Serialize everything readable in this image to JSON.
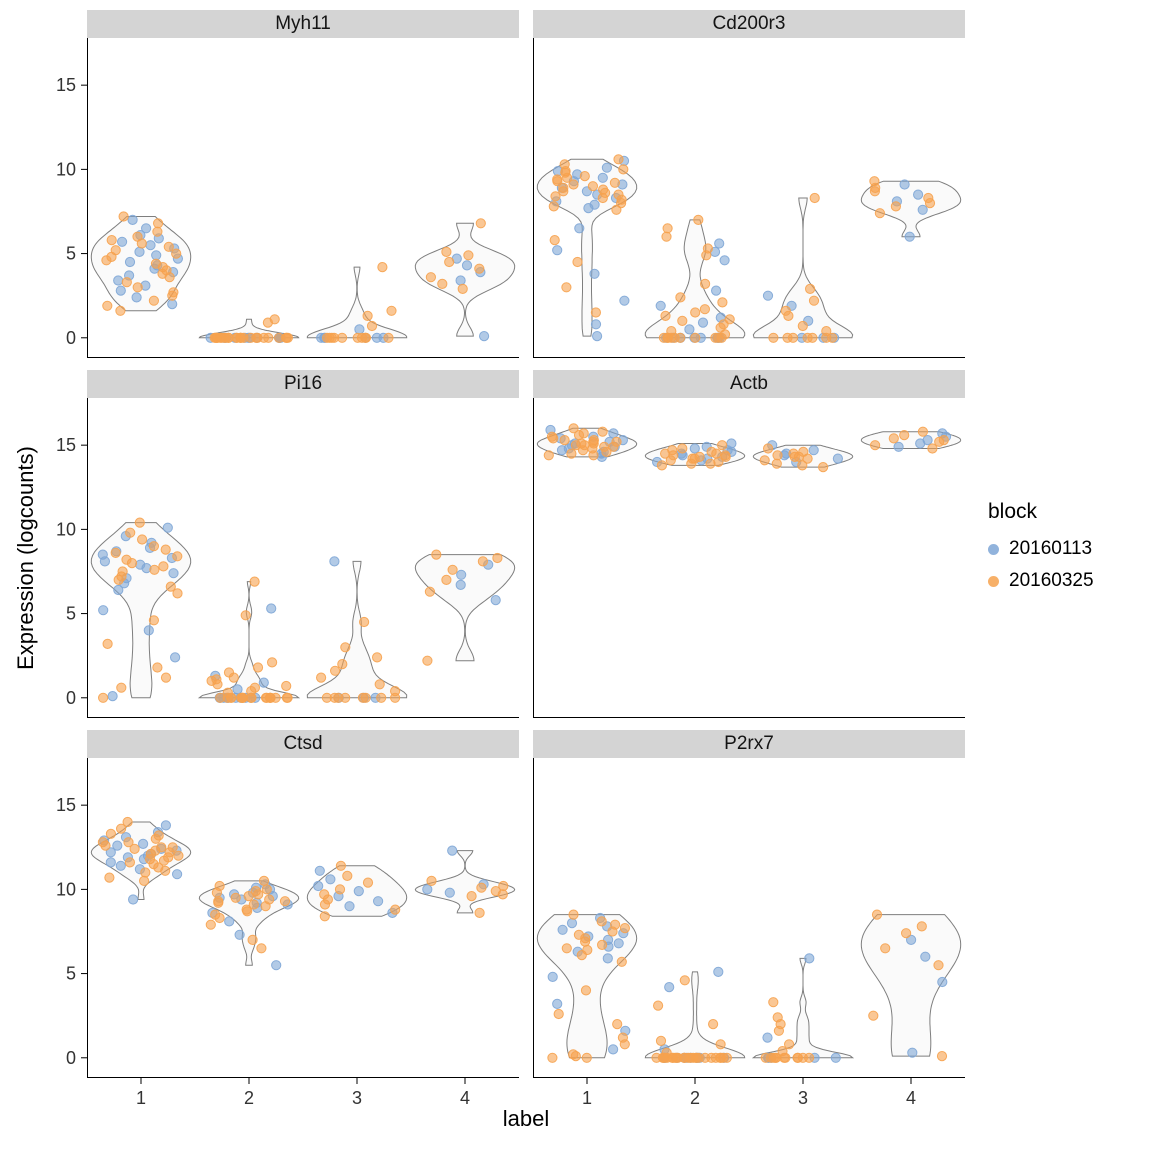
{
  "figure": {
    "y_axis_title": "Expression (logcounts)",
    "x_axis_title": "label",
    "x_ticks": [
      "1",
      "2",
      "3",
      "4"
    ],
    "y_ticks": [
      0,
      5,
      10,
      15
    ],
    "background": "#ffffff",
    "strip_color": "#d4d4d4",
    "axis_color": "#000000",
    "tick_text_color": "#333333"
  },
  "legend": {
    "title": "block",
    "items": [
      {
        "label": "20160113",
        "color": "#7EA6D6"
      },
      {
        "label": "20160325",
        "color": "#F6A24E"
      }
    ]
  },
  "chart_data": {
    "type": "violin",
    "facet_by": "gene",
    "x": "label",
    "y": "Expression (logcounts)",
    "ylim": [
      -1.2,
      17.8
    ],
    "violin_fill": "#FAFAFA",
    "violin_stroke": "#7E7E7E",
    "blocks": [
      "20160113",
      "20160325"
    ],
    "block_colors": {
      "20160113": "#7EA6D6",
      "20160325": "#F6A24E"
    },
    "facets": [
      {
        "gene": "Myh11",
        "groups": [
          {
            "label": "1",
            "values": {
              "20160113": [
                7.0,
                6.5,
                6.1,
                5.9,
                5.7,
                5.5,
                5.3,
                5.1,
                4.9,
                4.7,
                4.5,
                4.3,
                4.1,
                3.9,
                3.7,
                3.4,
                3.1,
                2.8,
                2.4,
                2.0
              ],
              "20160325": [
                7.2,
                6.8,
                6.3,
                6.0,
                5.8,
                5.6,
                5.4,
                5.2,
                5.0,
                4.8,
                4.6,
                4.4,
                4.2,
                4.0,
                3.8,
                3.6,
                3.3,
                3.0,
                2.7,
                2.5,
                2.2,
                1.9,
                1.6
              ]
            }
          },
          {
            "label": "2",
            "values": {
              "20160113": [
                0,
                0,
                0,
                0,
                0,
                0,
                0,
                0,
                0,
                0,
                0,
                0
              ],
              "20160325": [
                0,
                0,
                0,
                0,
                0,
                0,
                0,
                0,
                0,
                0,
                0,
                0,
                0,
                0,
                0,
                0,
                0,
                0,
                0,
                0,
                0,
                0,
                0,
                0,
                0,
                0,
                0.9,
                1.1
              ]
            }
          },
          {
            "label": "3",
            "values": {
              "20160113": [
                0,
                0,
                0,
                0,
                0,
                0,
                0.5
              ],
              "20160325": [
                0,
                0,
                0,
                0,
                0,
                0,
                0,
                0,
                0,
                0,
                0.7,
                1.3,
                1.6,
                4.2
              ]
            }
          },
          {
            "label": "4",
            "values": {
              "20160113": [
                0.1,
                3.4,
                3.9,
                4.3,
                4.7
              ],
              "20160325": [
                2.9,
                3.2,
                3.6,
                4.1,
                4.5,
                4.9,
                5.1,
                6.8
              ]
            }
          }
        ]
      },
      {
        "gene": "Cd200r3",
        "groups": [
          {
            "label": "1",
            "values": {
              "20160113": [
                10.5,
                10.1,
                9.9,
                9.7,
                9.5,
                9.3,
                9.1,
                8.9,
                8.7,
                8.5,
                8.3,
                8.1,
                7.9,
                7.7,
                6.5,
                5.2,
                3.8,
                2.2,
                0.8,
                0.1
              ],
              "20160325": [
                10.6,
                10.3,
                10.0,
                9.9,
                9.8,
                9.6,
                9.5,
                9.4,
                9.3,
                9.2,
                9.1,
                9.0,
                8.9,
                8.8,
                8.7,
                8.6,
                8.5,
                8.4,
                8.3,
                8.2,
                8.0,
                7.8,
                7.6,
                5.8,
                4.5,
                3.0,
                1.5
              ]
            }
          },
          {
            "label": "2",
            "values": {
              "20160113": [
                0,
                0,
                0,
                0,
                0,
                0,
                0,
                0,
                0.5,
                0.9,
                1.2,
                1.9,
                2.8,
                4.6,
                5.1,
                5.6
              ],
              "20160325": [
                0,
                0,
                0,
                0,
                0,
                0,
                0,
                0,
                0,
                0,
                0.2,
                0.4,
                0.6,
                0.8,
                1.0,
                1.1,
                1.3,
                1.5,
                1.7,
                2.1,
                2.4,
                3.2,
                4.9,
                5.3,
                6.0,
                6.5,
                7.0
              ]
            }
          },
          {
            "label": "3",
            "values": {
              "20160113": [
                0,
                0,
                0,
                1.0,
                1.9,
                2.5
              ],
              "20160325": [
                0,
                0,
                0,
                0,
                0,
                0,
                0,
                0.4,
                0.7,
                1.3,
                1.6,
                2.2,
                2.9,
                8.3
              ]
            }
          },
          {
            "label": "4",
            "values": {
              "20160113": [
                6.0,
                7.6,
                8.1,
                8.5,
                9.1
              ],
              "20160325": [
                7.4,
                7.8,
                8.0,
                8.3,
                8.7,
                8.9,
                9.3
              ]
            }
          }
        ]
      },
      {
        "gene": "Pi16",
        "groups": [
          {
            "label": "1",
            "values": {
              "20160113": [
                10.1,
                9.6,
                9.2,
                8.9,
                8.7,
                8.5,
                8.3,
                8.1,
                7.9,
                7.7,
                7.4,
                7.1,
                6.8,
                6.4,
                5.2,
                4.0,
                2.4,
                0.1
              ],
              "20160325": [
                10.4,
                9.8,
                9.4,
                9.0,
                8.8,
                8.6,
                8.4,
                8.2,
                8.0,
                7.8,
                7.6,
                7.5,
                7.2,
                7.0,
                6.6,
                6.2,
                4.6,
                3.2,
                1.8,
                1.2,
                0.6,
                0.0
              ]
            }
          },
          {
            "label": "2",
            "values": {
              "20160113": [
                0,
                0,
                0,
                0,
                0,
                0,
                0,
                0,
                0,
                0,
                0.5,
                0.9,
                1.3,
                5.3
              ],
              "20160325": [
                0,
                0,
                0,
                0,
                0,
                0,
                0,
                0,
                0,
                0,
                0,
                0,
                0,
                0,
                0,
                0,
                0,
                0,
                0.3,
                0.4,
                0.6,
                0.7,
                0.8,
                1.0,
                1.1,
                1.2,
                1.5,
                1.8,
                2.1,
                4.9,
                6.9
              ]
            }
          },
          {
            "label": "3",
            "values": {
              "20160113": [
                0,
                0,
                0,
                8.1
              ],
              "20160325": [
                0,
                0,
                0,
                0,
                0,
                0,
                0,
                0,
                0.4,
                0.8,
                1.2,
                1.6,
                2.0,
                2.4,
                3.0,
                4.5
              ]
            }
          },
          {
            "label": "4",
            "values": {
              "20160113": [
                5.8,
                6.7,
                7.3,
                7.9
              ],
              "20160325": [
                2.2,
                6.3,
                7.0,
                7.6,
                8.1,
                8.3,
                8.5
              ]
            }
          }
        ]
      },
      {
        "gene": "Actb",
        "groups": [
          {
            "label": "1",
            "values": {
              "20160113": [
                15.9,
                15.7,
                15.5,
                15.4,
                15.3,
                15.2,
                15.1,
                15.0,
                14.9,
                14.8,
                14.7,
                14.6,
                14.5,
                14.3
              ],
              "20160325": [
                16.0,
                15.8,
                15.7,
                15.6,
                15.5,
                15.4,
                15.3,
                15.3,
                15.2,
                15.2,
                15.1,
                15.1,
                15.0,
                15.0,
                14.9,
                14.9,
                14.8,
                14.7,
                14.6,
                14.5,
                14.4,
                14.4
              ]
            }
          },
          {
            "label": "2",
            "values": {
              "20160113": [
                15.1,
                14.9,
                14.8,
                14.7,
                14.6,
                14.5,
                14.4,
                14.3,
                14.2,
                14.1,
                14.0
              ],
              "20160325": [
                15.0,
                14.8,
                14.7,
                14.6,
                14.5,
                14.5,
                14.4,
                14.4,
                14.3,
                14.3,
                14.2,
                14.2,
                14.1,
                14.0,
                13.9,
                13.9,
                13.8
              ]
            }
          },
          {
            "label": "3",
            "values": {
              "20160113": [
                15.0,
                14.7,
                14.5,
                14.4,
                14.2,
                14.0
              ],
              "20160325": [
                14.8,
                14.6,
                14.5,
                14.4,
                14.3,
                14.3,
                14.2,
                14.1,
                13.9,
                13.8,
                13.7
              ]
            }
          },
          {
            "label": "4",
            "values": {
              "20160113": [
                15.7,
                15.5,
                15.3,
                15.1,
                14.9
              ],
              "20160325": [
                15.8,
                15.6,
                15.4,
                15.3,
                15.2,
                15.0,
                14.8
              ]
            }
          }
        ]
      },
      {
        "gene": "Ctsd",
        "groups": [
          {
            "label": "1",
            "values": {
              "20160113": [
                13.8,
                13.4,
                13.1,
                12.9,
                12.7,
                12.6,
                12.4,
                12.3,
                12.2,
                12.1,
                12.0,
                11.9,
                11.8,
                11.6,
                11.4,
                11.2,
                10.9,
                9.4
              ],
              "20160325": [
                14.0,
                13.6,
                13.3,
                13.2,
                13.0,
                12.8,
                12.8,
                12.6,
                12.5,
                12.5,
                12.4,
                12.3,
                12.2,
                12.1,
                12.0,
                11.9,
                11.8,
                11.7,
                11.6,
                11.5,
                11.3,
                11.1,
                11.0,
                10.7,
                10.5
              ]
            }
          },
          {
            "label": "2",
            "values": {
              "20160113": [
                10.3,
                10.1,
                10.0,
                9.8,
                9.7,
                9.6,
                9.5,
                9.4,
                9.2,
                9.1,
                8.9,
                8.6,
                8.1,
                7.3,
                5.5
              ],
              "20160325": [
                10.5,
                10.2,
                10.0,
                9.9,
                9.8,
                9.7,
                9.6,
                9.5,
                9.4,
                9.3,
                9.3,
                9.2,
                9.1,
                9.0,
                8.8,
                8.7,
                8.5,
                8.3,
                7.9,
                7.0,
                6.5
              ]
            }
          },
          {
            "label": "3",
            "values": {
              "20160113": [
                11.1,
                10.6,
                10.2,
                9.9,
                9.6,
                9.3,
                9.0,
                8.6
              ],
              "20160325": [
                11.4,
                10.8,
                10.4,
                10.0,
                9.7,
                9.4,
                9.1,
                8.8,
                8.4
              ]
            }
          },
          {
            "label": "4",
            "values": {
              "20160113": [
                12.3,
                10.3,
                10.0,
                9.8
              ],
              "20160325": [
                10.5,
                10.2,
                10.1,
                9.9,
                9.7,
                9.6,
                8.6
              ]
            }
          }
        ]
      },
      {
        "gene": "P2rx7",
        "groups": [
          {
            "label": "1",
            "values": {
              "20160113": [
                8.3,
                8.0,
                7.8,
                7.6,
                7.4,
                7.2,
                7.0,
                6.8,
                6.6,
                6.3,
                5.9,
                4.8,
                3.2,
                1.6,
                0.5
              ],
              "20160325": [
                8.5,
                8.1,
                7.9,
                7.7,
                7.5,
                7.3,
                7.1,
                6.9,
                6.7,
                6.5,
                6.4,
                6.1,
                5.7,
                4.0,
                2.6,
                2.0,
                1.2,
                0.8,
                0.2,
                0.1,
                0.0,
                0.0
              ]
            }
          },
          {
            "label": "2",
            "values": {
              "20160113": [
                0,
                0,
                0,
                0,
                0,
                0,
                0,
                0,
                0,
                0,
                0.5,
                4.2,
                5.1
              ],
              "20160325": [
                0,
                0,
                0,
                0,
                0,
                0,
                0,
                0,
                0,
                0,
                0,
                0,
                0,
                0,
                0,
                0,
                0,
                0,
                0,
                0,
                0,
                0,
                0,
                0,
                0,
                0.3,
                0.8,
                1.0,
                2.0,
                3.1,
                4.6
              ]
            }
          },
          {
            "label": "3",
            "values": {
              "20160113": [
                0,
                0,
                0,
                0,
                0,
                1.2,
                5.9
              ],
              "20160325": [
                0,
                0,
                0,
                0,
                0,
                0,
                0,
                0,
                0,
                0,
                0,
                0.4,
                0.8,
                1.6,
                2.0,
                2.4,
                3.3
              ]
            }
          },
          {
            "label": "4",
            "values": {
              "20160113": [
                0.3,
                4.5,
                6.0,
                7.0
              ],
              "20160325": [
                0.1,
                2.5,
                5.5,
                6.5,
                7.4,
                7.8,
                8.5
              ]
            }
          }
        ]
      }
    ]
  }
}
